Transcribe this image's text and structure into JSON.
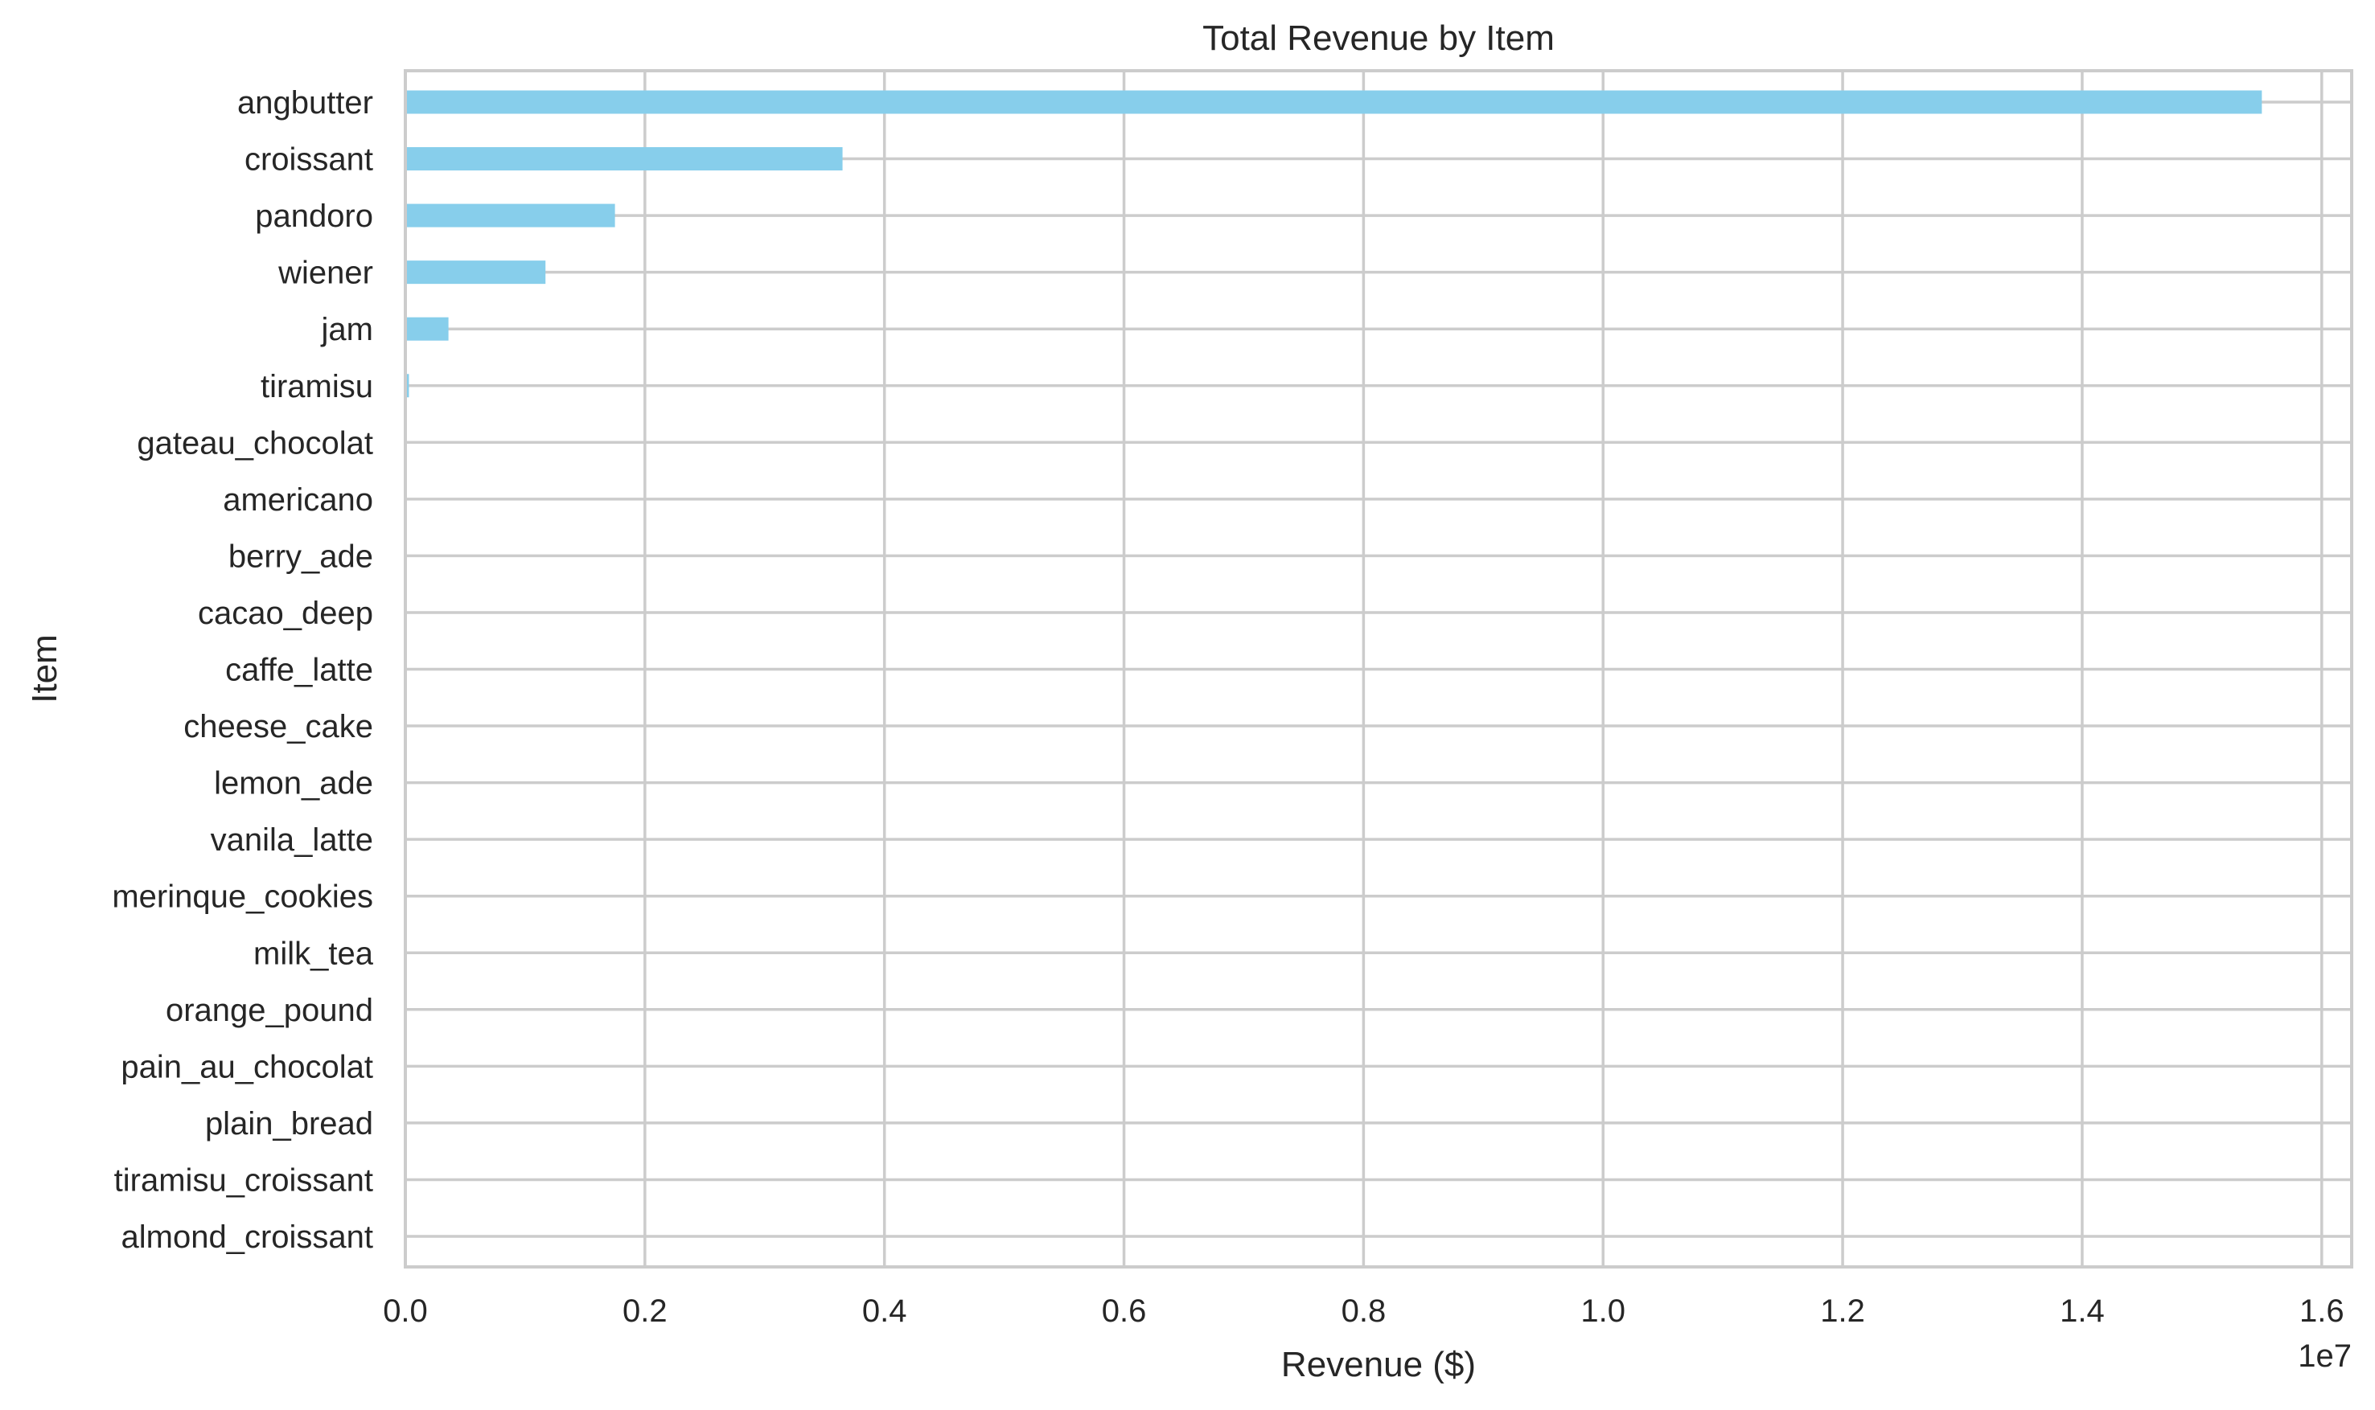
{
  "chart_data": {
    "type": "bar",
    "orientation": "horizontal",
    "title": "Total Revenue by Item",
    "xlabel": "Revenue ($)",
    "ylabel": "Item",
    "x_offset_label": "1e7",
    "xlim": [
      0,
      16250000
    ],
    "xticks": [
      0,
      2000000,
      4000000,
      6000000,
      8000000,
      10000000,
      12000000,
      14000000,
      16000000
    ],
    "xtick_labels": [
      "0.0",
      "0.2",
      "0.4",
      "0.6",
      "0.8",
      "1.0",
      "1.2",
      "1.4",
      "1.6"
    ],
    "grid": true,
    "bar_color": "#87ceeb",
    "categories": [
      "angbutter",
      "croissant",
      "pandoro",
      "wiener",
      "jam",
      "tiramisu",
      "gateau_chocolat",
      "americano",
      "berry_ade",
      "cacao_deep",
      "caffe_latte",
      "cheese_cake",
      "lemon_ade",
      "vanila_latte",
      "merinque_cookies",
      "milk_tea",
      "orange_pound",
      "pain_au_chocolat",
      "plain_bread",
      "tiramisu_croissant",
      "almond_croissant"
    ],
    "values": [
      15500000,
      3650000,
      1750000,
      1170000,
      360000,
      30000,
      0,
      0,
      0,
      0,
      0,
      0,
      0,
      0,
      0,
      0,
      0,
      0,
      0,
      0,
      0
    ]
  }
}
